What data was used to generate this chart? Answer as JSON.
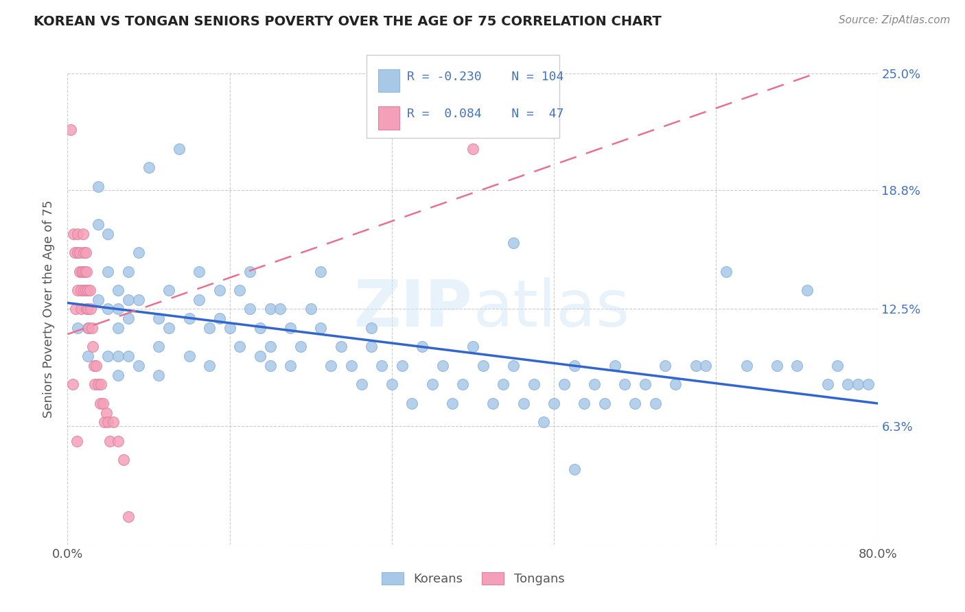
{
  "title": "KOREAN VS TONGAN SENIORS POVERTY OVER THE AGE OF 75 CORRELATION CHART",
  "source": "Source: ZipAtlas.com",
  "ylabel": "Seniors Poverty Over the Age of 75",
  "xlim": [
    0.0,
    0.8
  ],
  "ylim": [
    0.0,
    0.25
  ],
  "ytick_positions": [
    0.0,
    0.063,
    0.125,
    0.188,
    0.25
  ],
  "ytick_labels": [
    "",
    "6.3%",
    "12.5%",
    "18.8%",
    "25.0%"
  ],
  "korean_R": -0.23,
  "korean_N": 104,
  "tongan_R": 0.084,
  "tongan_N": 47,
  "korean_color": "#a8c8e8",
  "tongan_color": "#f4a0b8",
  "korean_line_color": "#3366cc",
  "tongan_line_color": "#e87090",
  "watermark": "ZIPatlas",
  "background_color": "#ffffff",
  "legend_korean_label": "Koreans",
  "legend_tongan_label": "Tongans",
  "korean_x": [
    0.01,
    0.02,
    0.02,
    0.03,
    0.03,
    0.03,
    0.04,
    0.04,
    0.04,
    0.04,
    0.05,
    0.05,
    0.05,
    0.05,
    0.05,
    0.06,
    0.06,
    0.06,
    0.06,
    0.07,
    0.07,
    0.07,
    0.08,
    0.09,
    0.09,
    0.09,
    0.1,
    0.1,
    0.11,
    0.12,
    0.12,
    0.13,
    0.13,
    0.14,
    0.14,
    0.15,
    0.15,
    0.16,
    0.17,
    0.17,
    0.18,
    0.18,
    0.19,
    0.19,
    0.2,
    0.2,
    0.21,
    0.22,
    0.22,
    0.23,
    0.24,
    0.25,
    0.25,
    0.26,
    0.27,
    0.28,
    0.29,
    0.3,
    0.31,
    0.32,
    0.33,
    0.34,
    0.35,
    0.36,
    0.37,
    0.38,
    0.39,
    0.4,
    0.41,
    0.42,
    0.43,
    0.44,
    0.45,
    0.46,
    0.47,
    0.48,
    0.49,
    0.5,
    0.51,
    0.52,
    0.53,
    0.54,
    0.55,
    0.56,
    0.57,
    0.58,
    0.59,
    0.6,
    0.62,
    0.63,
    0.65,
    0.67,
    0.7,
    0.72,
    0.73,
    0.75,
    0.76,
    0.77,
    0.78,
    0.79,
    0.44,
    0.2,
    0.3,
    0.5
  ],
  "korean_y": [
    0.115,
    0.115,
    0.1,
    0.19,
    0.17,
    0.13,
    0.165,
    0.145,
    0.125,
    0.1,
    0.135,
    0.125,
    0.115,
    0.1,
    0.09,
    0.145,
    0.13,
    0.12,
    0.1,
    0.155,
    0.13,
    0.095,
    0.2,
    0.12,
    0.105,
    0.09,
    0.135,
    0.115,
    0.21,
    0.12,
    0.1,
    0.145,
    0.13,
    0.115,
    0.095,
    0.135,
    0.12,
    0.115,
    0.135,
    0.105,
    0.145,
    0.125,
    0.115,
    0.1,
    0.125,
    0.105,
    0.125,
    0.115,
    0.095,
    0.105,
    0.125,
    0.145,
    0.115,
    0.095,
    0.105,
    0.095,
    0.085,
    0.105,
    0.095,
    0.085,
    0.095,
    0.075,
    0.105,
    0.085,
    0.095,
    0.075,
    0.085,
    0.105,
    0.095,
    0.075,
    0.085,
    0.095,
    0.075,
    0.085,
    0.065,
    0.075,
    0.085,
    0.095,
    0.075,
    0.085,
    0.075,
    0.095,
    0.085,
    0.075,
    0.085,
    0.075,
    0.095,
    0.085,
    0.095,
    0.095,
    0.145,
    0.095,
    0.095,
    0.095,
    0.135,
    0.085,
    0.095,
    0.085,
    0.085,
    0.085,
    0.16,
    0.095,
    0.115,
    0.04
  ],
  "tongan_x": [
    0.003,
    0.005,
    0.006,
    0.007,
    0.008,
    0.009,
    0.01,
    0.01,
    0.01,
    0.012,
    0.012,
    0.013,
    0.013,
    0.014,
    0.015,
    0.015,
    0.016,
    0.016,
    0.017,
    0.018,
    0.018,
    0.019,
    0.019,
    0.02,
    0.02,
    0.021,
    0.022,
    0.023,
    0.024,
    0.025,
    0.026,
    0.027,
    0.028,
    0.03,
    0.032,
    0.033,
    0.035,
    0.036,
    0.038,
    0.04,
    0.042,
    0.045,
    0.05,
    0.055,
    0.06,
    0.38,
    0.4
  ],
  "tongan_y": [
    0.22,
    0.085,
    0.165,
    0.155,
    0.125,
    0.055,
    0.165,
    0.155,
    0.135,
    0.155,
    0.145,
    0.135,
    0.125,
    0.145,
    0.165,
    0.145,
    0.155,
    0.135,
    0.145,
    0.155,
    0.135,
    0.145,
    0.125,
    0.135,
    0.125,
    0.115,
    0.135,
    0.125,
    0.115,
    0.105,
    0.095,
    0.085,
    0.095,
    0.085,
    0.075,
    0.085,
    0.075,
    0.065,
    0.07,
    0.065,
    0.055,
    0.065,
    0.055,
    0.045,
    0.015,
    0.22,
    0.21
  ]
}
